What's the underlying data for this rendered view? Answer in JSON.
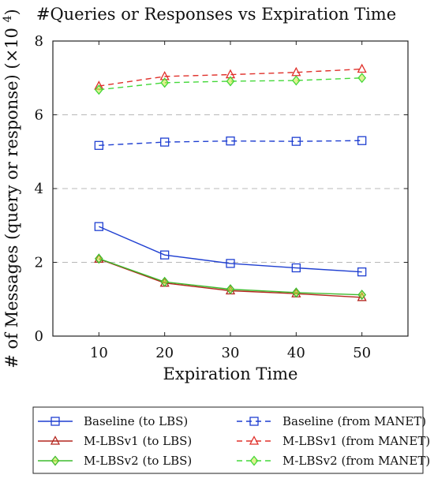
{
  "chart_data": {
    "type": "line",
    "title": "#Queries or Responses vs Expiration Time",
    "xlabel": "Expiration Time",
    "ylabel": "# of Messages (query or response) (×10⁴)",
    "y_multiplier": "×10⁴",
    "x": [
      10,
      20,
      30,
      40,
      50
    ],
    "xlim": [
      3,
      57
    ],
    "ylim": [
      0,
      8
    ],
    "x_ticks": [
      10,
      20,
      30,
      40,
      50
    ],
    "y_ticks": [
      0,
      2,
      4,
      6,
      8
    ],
    "grid": "horizontal dashed",
    "legend_position": "below plot, two columns",
    "series": [
      {
        "name": "Baseline (to LBS)",
        "values": [
          2.97,
          2.2,
          1.97,
          1.85,
          1.74
        ],
        "color": "#1f3fd1",
        "dash": "solid",
        "marker": "square"
      },
      {
        "name": "M-LBSv1 (to LBS)",
        "values": [
          2.09,
          1.44,
          1.23,
          1.15,
          1.05
        ],
        "color": "#b3261e",
        "dash": "solid",
        "marker": "triangle"
      },
      {
        "name": "M-LBSv2 (to LBS)",
        "values": [
          2.1,
          1.47,
          1.27,
          1.18,
          1.12
        ],
        "color": "#3dbb2e",
        "dash": "solid",
        "marker": "diamond"
      },
      {
        "name": "Baseline (from MANET)",
        "values": [
          5.17,
          5.26,
          5.29,
          5.28,
          5.3
        ],
        "color": "#1f3fd1",
        "dash": "dashed",
        "marker": "square"
      },
      {
        "name": "M-LBSv1 (from MANET)",
        "values": [
          6.78,
          7.04,
          7.09,
          7.15,
          7.24
        ],
        "color": "#e0302a",
        "dash": "dashed",
        "marker": "triangle"
      },
      {
        "name": "M-LBSv2 (from MANET)",
        "values": [
          6.68,
          6.87,
          6.91,
          6.93,
          7.0
        ],
        "color": "#44d83a",
        "dash": "dashed",
        "marker": "diamond"
      }
    ]
  }
}
